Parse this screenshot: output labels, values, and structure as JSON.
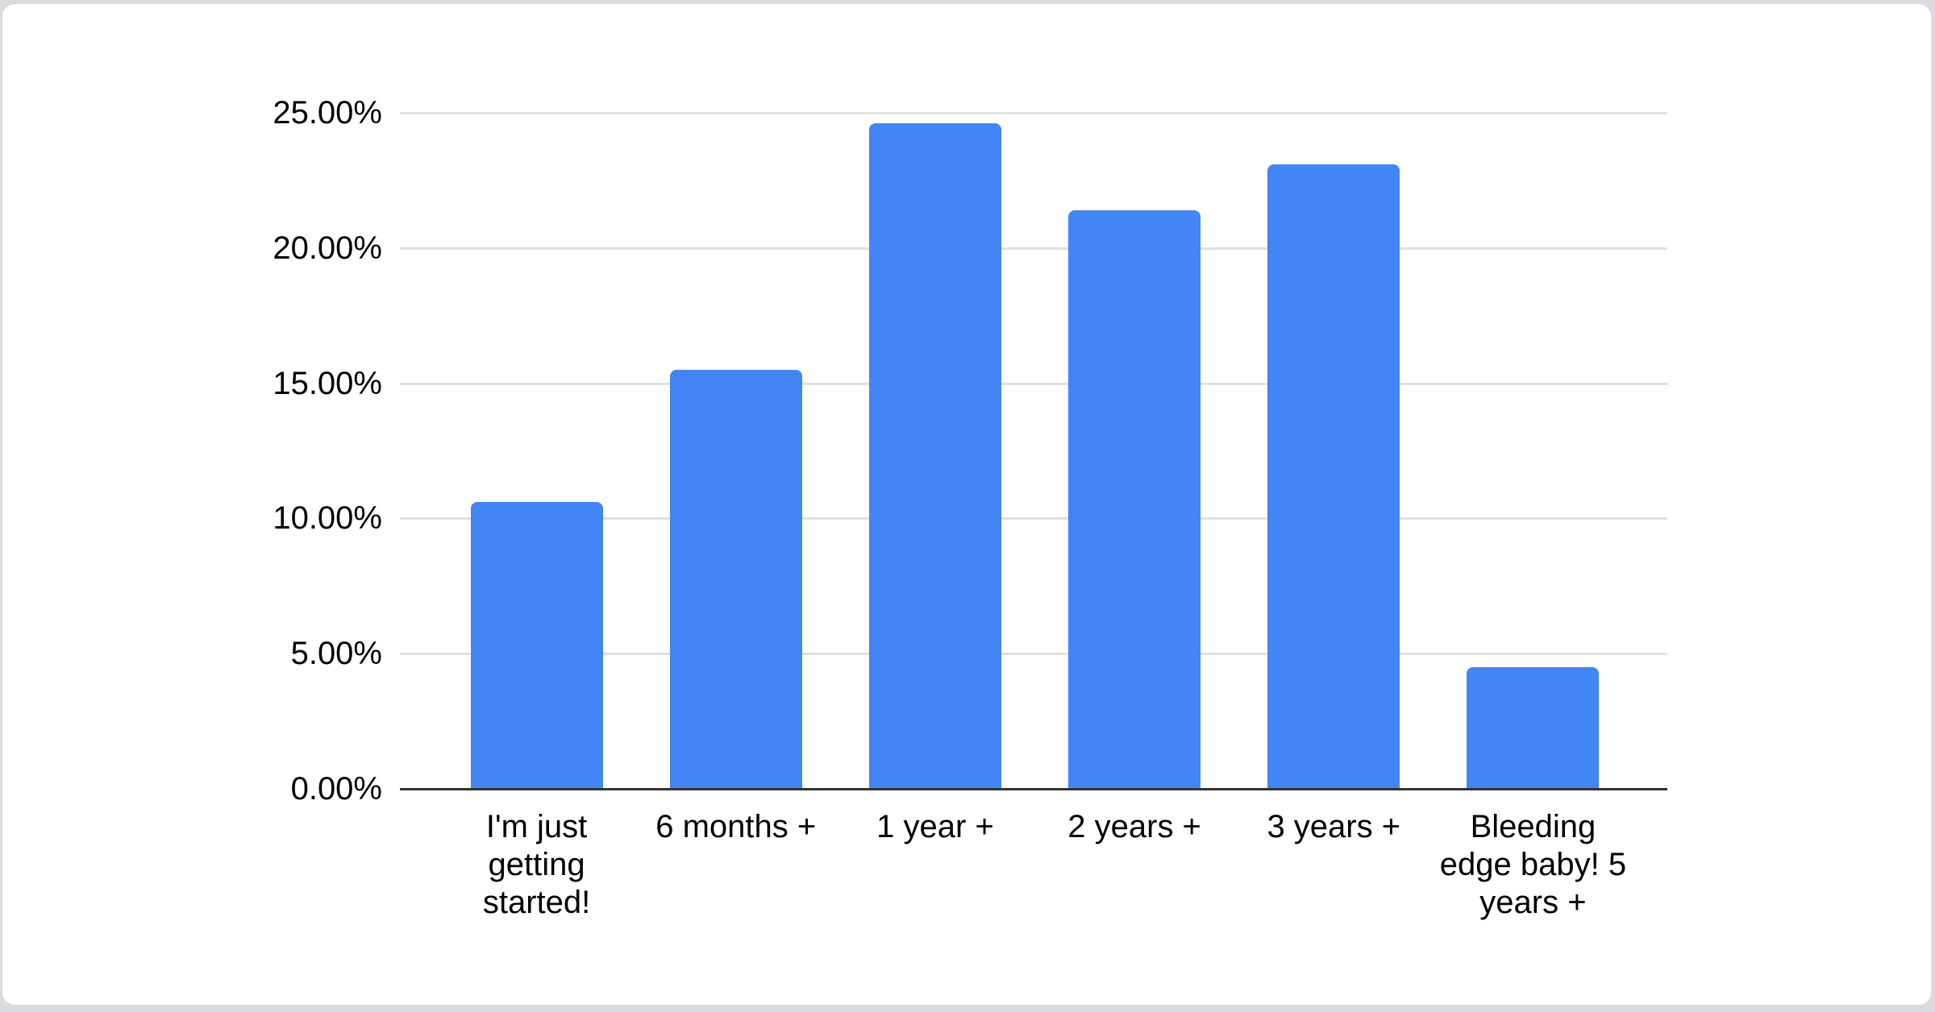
{
  "page": {
    "background_color": "#d9dcdf"
  },
  "card": {
    "background_color": "#ffffff",
    "border_color": "#d3d6da"
  },
  "chart_data": {
    "type": "bar",
    "title": "",
    "xlabel": "",
    "ylabel": "",
    "categories": [
      "I'm just getting started!",
      "6 months +",
      "1 year +",
      "2 years +",
      "3 years +",
      "Bleeding edge baby! 5 years +"
    ],
    "values": [
      10.6,
      15.5,
      24.6,
      21.4,
      23.1,
      4.5
    ],
    "unit": "%",
    "ylim": [
      0,
      25
    ],
    "y_ticks": [
      {
        "label": "0.00%",
        "value": 0
      },
      {
        "label": "5.00%",
        "value": 5
      },
      {
        "label": "10.00%",
        "value": 10
      },
      {
        "label": "15.00%",
        "value": 15
      },
      {
        "label": "20.00%",
        "value": 20
      },
      {
        "label": "25.00%",
        "value": 25
      }
    ],
    "grid": true,
    "legend": "none",
    "bar_color": "#4285f4",
    "gridline_color": "#e0e0e0",
    "baseline_color": "#333333",
    "label_color": "#000000"
  }
}
